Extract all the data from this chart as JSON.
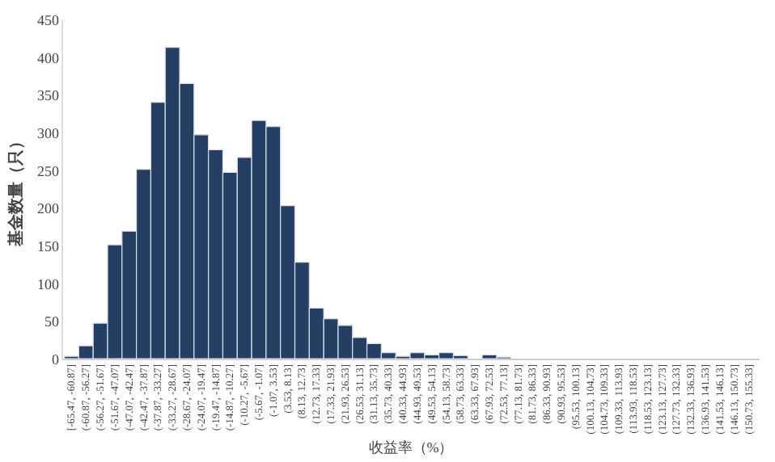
{
  "chart_data": {
    "type": "bar",
    "xlabel": "收益率（%）",
    "ylabel": "基金数量（只）",
    "categories": [
      "[-65.47, -60.87]",
      "(-60.87, -56.27]",
      "(-56.27, -51.67]",
      "(-51.67, -47.07]",
      "(-47.07, -42.47]",
      "(-42.47, -37.87]",
      "(-37.87, -33.27]",
      "(-33.27, -28.67]",
      "(-28.67, -24.07]",
      "(-24.07, -19.47]",
      "(-19.47, -14.87]",
      "(-14.87, -10.27]",
      "(-10.27, -5.67]",
      "(-5.67, -1.07]",
      "(-1.07, 3.53]",
      "(3.53, 8.13]",
      "(8.13, 12.73]",
      "(12.73, 17.33]",
      "(17.33, 21.93]",
      "(21.93, 26.53]",
      "(26.53, 31.13]",
      "(31.13, 35.73]",
      "(35.73, 40.33]",
      "(40.33, 44.93]",
      "(44.93, 49.53]",
      "(49.53, 54.13]",
      "(54.13, 58.73]",
      "(58.73, 63.33]",
      "(63.33, 67.93]",
      "(67.93, 72.53]",
      "(72.53, 77.13]",
      "(77.13, 81.73]",
      "(81.73, 86.33]",
      "(86.33, 90.93]",
      "(90.93, 95.53]",
      "(95.53, 100.13]",
      "(100.13, 104.73]",
      "(104.73, 109.33]",
      "(109.33, 113.93]",
      "(113.93, 118.53]",
      "(118.53, 123.13]",
      "(123.13, 127.73]",
      "(127.73, 132.33]",
      "(132.33, 136.93]",
      "(136.93, 141.53]",
      "(141.53, 146.13]",
      "(146.13, 150.73]",
      "(150.73, 155.33]"
    ],
    "values": [
      3,
      17,
      47,
      151,
      169,
      251,
      340,
      413,
      365,
      297,
      277,
      247,
      267,
      316,
      308,
      203,
      128,
      67,
      53,
      44,
      28,
      20,
      8,
      3,
      8,
      5,
      8,
      4,
      0,
      5,
      2,
      0,
      0,
      0,
      0,
      0,
      0,
      0,
      0,
      0,
      0,
      0,
      0,
      0,
      0,
      0,
      0,
      0
    ],
    "color": "#243f63",
    "ylim": [
      0,
      450
    ],
    "yticks": [
      0,
      50,
      100,
      150,
      200,
      250,
      300,
      350,
      400,
      450
    ],
    "grid": false
  }
}
